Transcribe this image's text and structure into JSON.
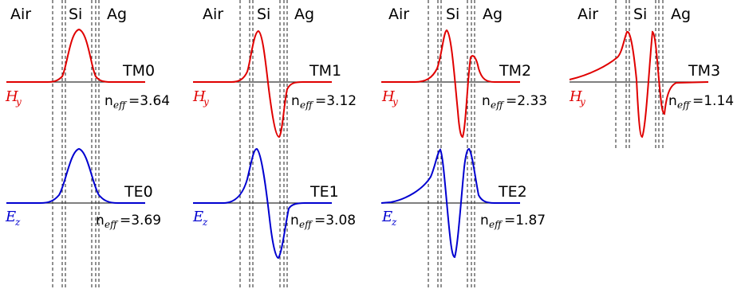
{
  "region_labels": {
    "air": "Air",
    "si": "Si",
    "ag": "Ag"
  },
  "neff_label": {
    "base": "n",
    "sub": "eff"
  },
  "colors": {
    "tm": "#e00000",
    "te": "#0000d0"
  },
  "field_labels": {
    "tm": {
      "base": "H",
      "sub": "y"
    },
    "te": {
      "base": "E",
      "sub": "z"
    }
  },
  "panels": [
    {
      "layers": {
        "air": "Air",
        "si": "Si",
        "ag": "Ag"
      },
      "tm": {
        "name": "TM0",
        "neff_value": "=3.64"
      },
      "te": {
        "name": "TE0",
        "neff_value": "=3.69"
      }
    },
    {
      "layers": {
        "air": "Air",
        "si": "Si",
        "ag": "Ag"
      },
      "tm": {
        "name": "TM1",
        "neff_value": "=3.12"
      },
      "te": {
        "name": "TE1",
        "neff_value": "=3.08"
      }
    },
    {
      "layers": {
        "air": "Air",
        "si": "Si",
        "ag": "Ag"
      },
      "tm": {
        "name": "TM2",
        "neff_value": "=2.33"
      },
      "te": {
        "name": "TE2",
        "neff_value": "=1.87"
      }
    },
    {
      "layers": {
        "air": "Air",
        "si": "Si",
        "ag": "Ag"
      },
      "tm": {
        "name": "TM3",
        "neff_value": "=1.14"
      }
    }
  ]
}
